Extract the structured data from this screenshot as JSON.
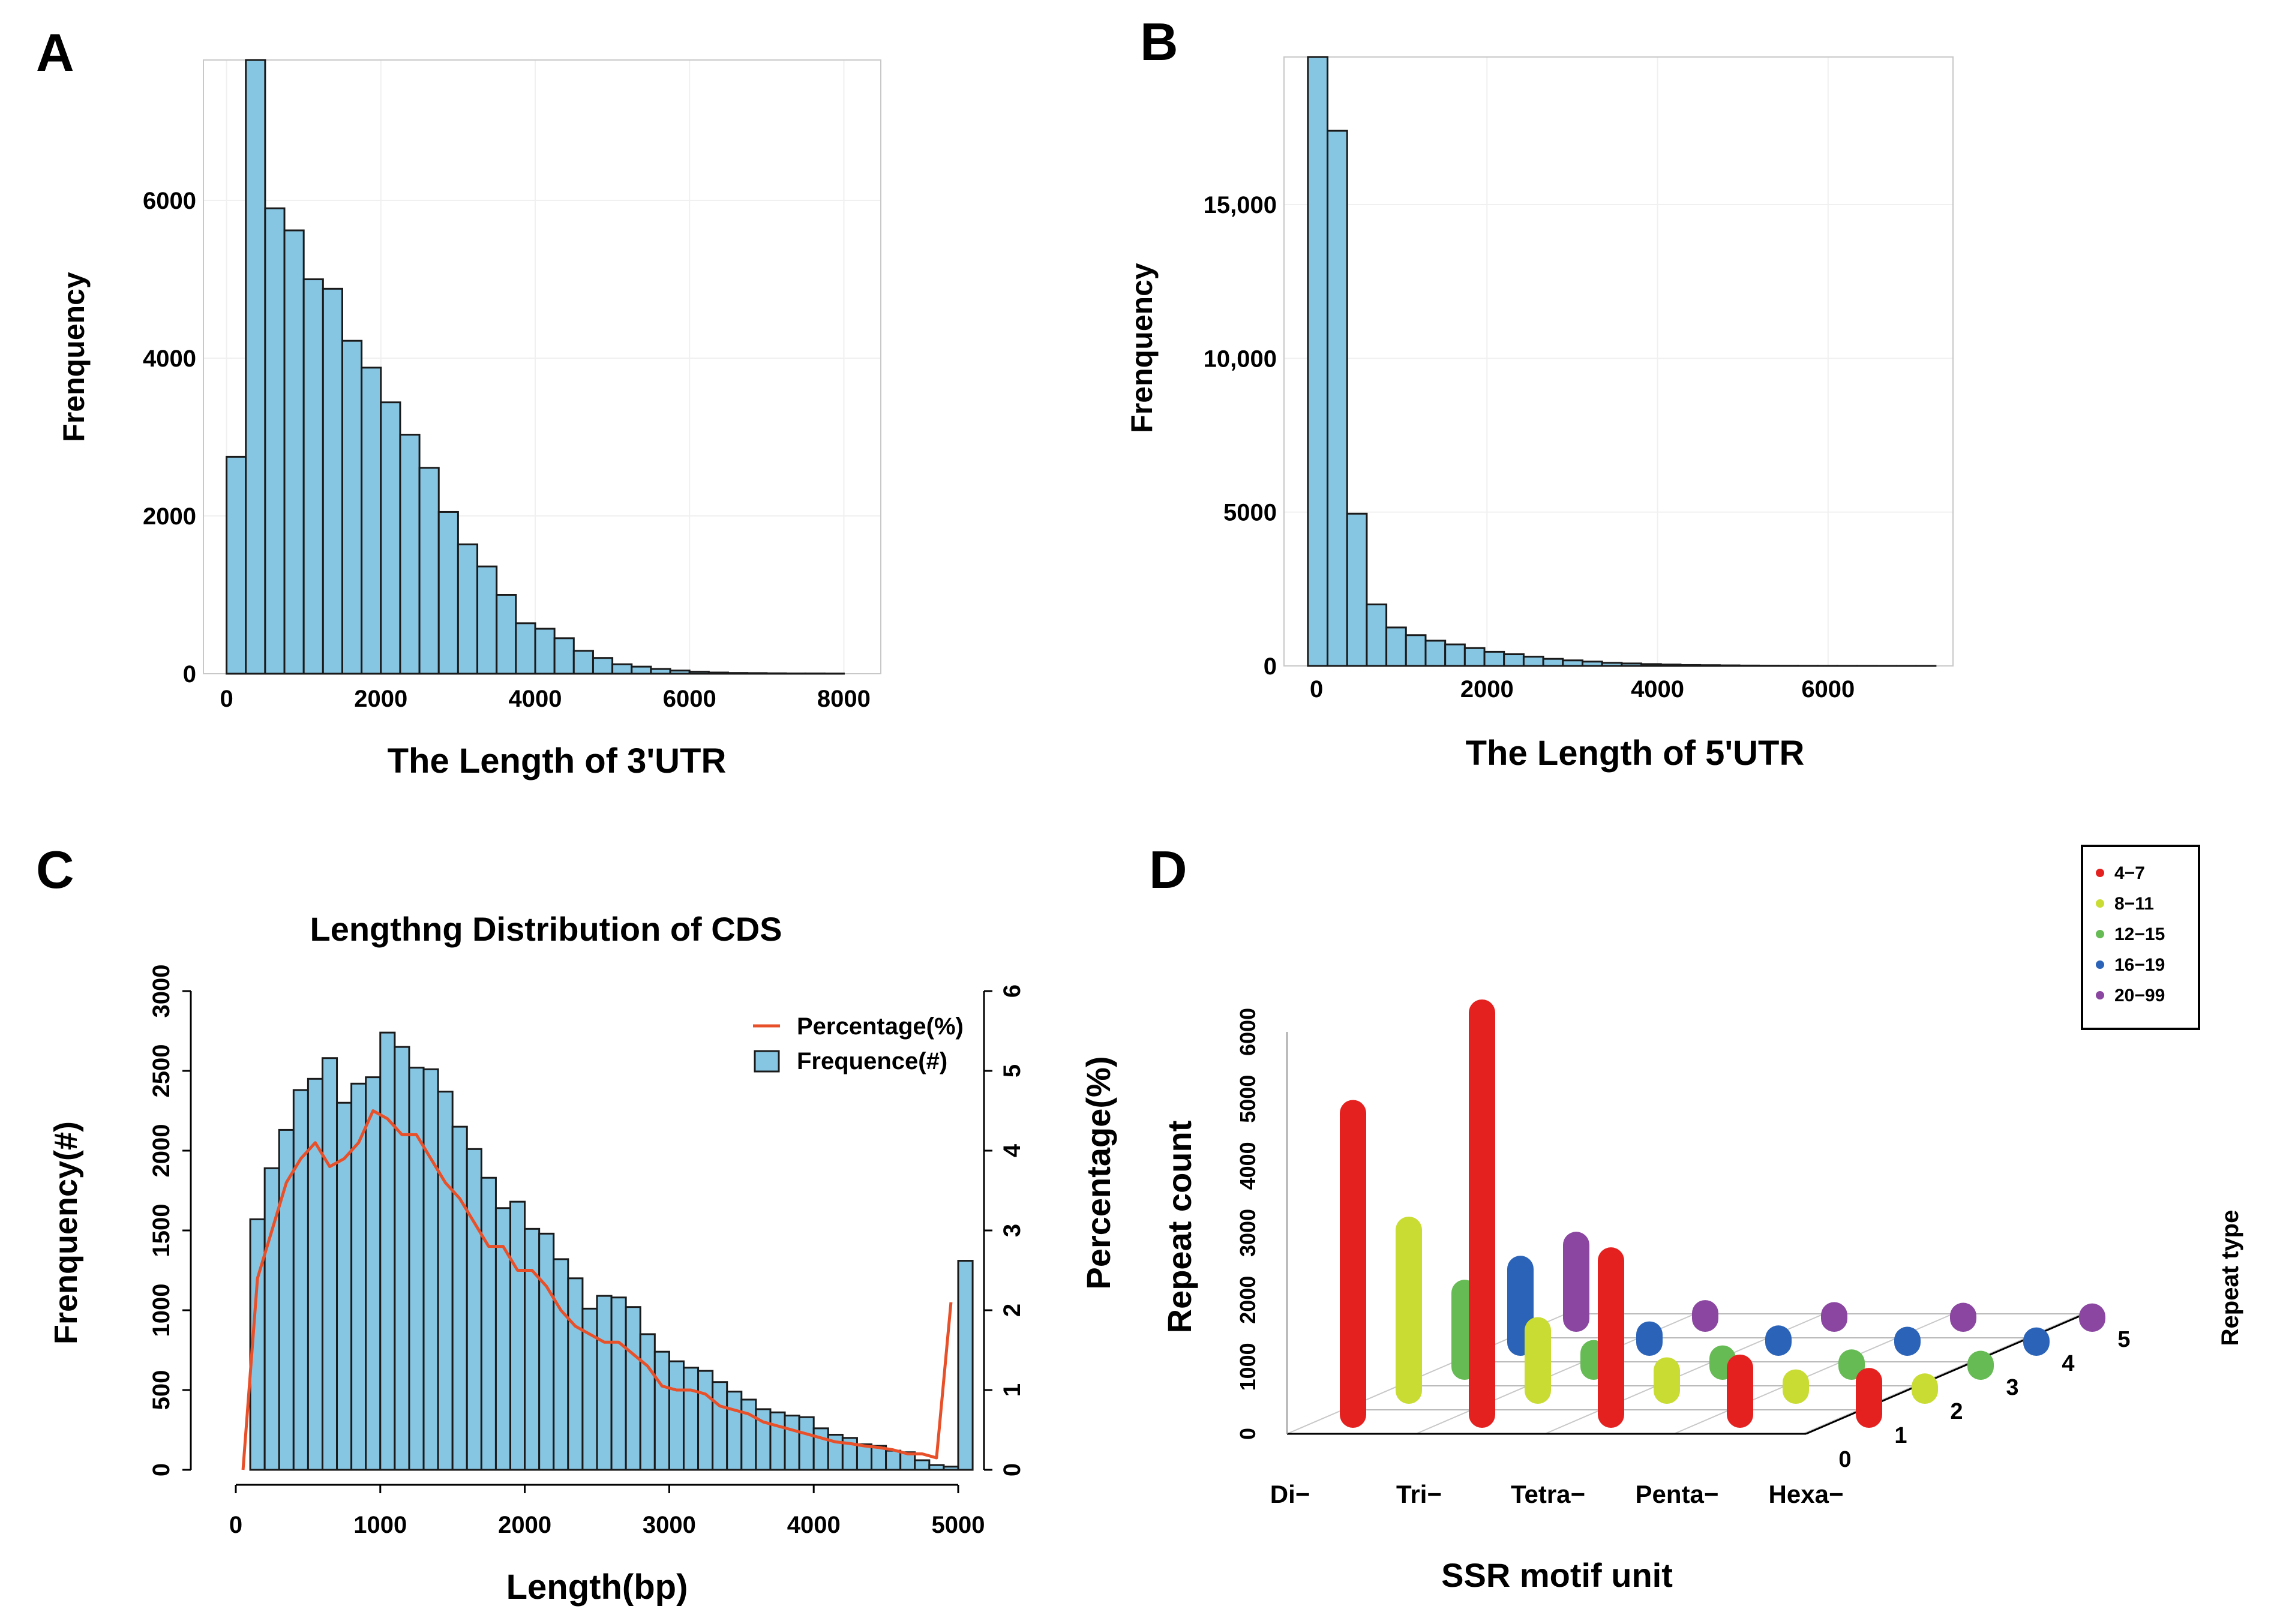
{
  "panels": {
    "A": {
      "letter": "A",
      "chart_data": {
        "type": "bar",
        "title": "",
        "xlabel": "The Length of 3'UTR",
        "ylabel": "Frenquency",
        "bin_start": 0,
        "bin_width": 250,
        "values": [
          2750,
          7780,
          5900,
          5620,
          5000,
          4880,
          4220,
          3880,
          3440,
          3030,
          2610,
          2050,
          1640,
          1360,
          1000,
          640,
          570,
          450,
          290,
          200,
          120,
          90,
          60,
          40,
          25,
          15,
          10,
          8,
          5,
          3,
          3,
          2
        ],
        "xlim": [
          -300,
          8300
        ],
        "ylim": [
          0,
          7780
        ],
        "xticks": [
          0,
          2000,
          4000,
          6000,
          8000
        ],
        "xtick_labels": [
          "0",
          "2000",
          "4000",
          "6000",
          "8000"
        ],
        "yticks": [
          0,
          2000,
          4000,
          6000
        ],
        "ytick_labels": [
          "0",
          "2000",
          "4000",
          "6000"
        ]
      }
    },
    "B": {
      "letter": "B",
      "chart_data": {
        "type": "bar",
        "title": "",
        "xlabel": "The Length of 5'UTR",
        "ylabel": "Frenquency",
        "bin_start": -100,
        "bin_width": 230,
        "values": [
          19800,
          17400,
          4950,
          2000,
          1250,
          1000,
          820,
          700,
          580,
          460,
          380,
          300,
          230,
          180,
          140,
          100,
          80,
          60,
          45,
          30,
          25,
          18,
          12,
          8,
          6,
          4,
          3,
          2,
          2,
          1,
          1,
          1
        ],
        "xlim": [
          -500,
          7500
        ],
        "ylim": [
          0,
          19800
        ],
        "xticks": [
          0,
          2000,
          4000,
          6000
        ],
        "xtick_labels": [
          "0",
          "2000",
          "4000",
          "6000"
        ],
        "yticks": [
          0,
          5000,
          10000,
          15000
        ],
        "ytick_labels": [
          "0",
          "5000",
          "10,000",
          "15,000"
        ]
      }
    },
    "C": {
      "letter": "C",
      "chart_data": {
        "type": "bar",
        "title": "Lengthng Distribution of CDS",
        "xlabel": "Length(bp)",
        "ylabel": "Frenquency(#)",
        "y2label": "Percentage(%)",
        "bin_start": 100,
        "bin_width": 100,
        "values": [
          1570,
          1890,
          2130,
          2380,
          2450,
          2580,
          2300,
          2420,
          2460,
          2740,
          2650,
          2520,
          2510,
          2370,
          2150,
          2010,
          1830,
          1640,
          1680,
          1510,
          1480,
          1320,
          1200,
          1010,
          1090,
          1080,
          1020,
          850,
          740,
          680,
          640,
          620,
          550,
          490,
          440,
          380,
          360,
          340,
          330,
          260,
          220,
          200,
          160,
          150,
          120,
          110,
          60,
          30,
          20,
          1310
        ],
        "series": [
          {
            "name": "Percentage(%)",
            "x": [
              50,
              150,
              250,
              350,
              450,
              550,
              650,
              750,
              850,
              950,
              1050,
              1150,
              1250,
              1350,
              1450,
              1550,
              1650,
              1750,
              1850,
              1950,
              2050,
              2150,
              2250,
              2350,
              2450,
              2550,
              2650,
              2750,
              2850,
              2950,
              3050,
              3150,
              3250,
              3350,
              3450,
              3550,
              3650,
              3750,
              3850,
              3950,
              4050,
              4150,
              4250,
              4350,
              4450,
              4550,
              4650,
              4750,
              4850,
              4950
            ],
            "values": [
              0,
              2.4,
              3.0,
              3.6,
              3.9,
              4.1,
              3.8,
              3.9,
              4.1,
              4.5,
              4.4,
              4.2,
              4.2,
              3.9,
              3.6,
              3.4,
              3.1,
              2.8,
              2.8,
              2.5,
              2.5,
              2.3,
              2.0,
              1.8,
              1.7,
              1.6,
              1.6,
              1.45,
              1.3,
              1.05,
              1.0,
              1.0,
              0.95,
              0.8,
              0.75,
              0.7,
              0.6,
              0.55,
              0.5,
              0.45,
              0.4,
              0.35,
              0.33,
              0.3,
              0.28,
              0.25,
              0.2,
              0.2,
              0.15,
              2.1
            ]
          },
          {
            "name": "Frequence(#)"
          }
        ],
        "xlim": [
          0,
          5000
        ],
        "ylim": [
          0,
          3000
        ],
        "y2lim": [
          0,
          6
        ],
        "xticks": [
          0,
          1000,
          2000,
          3000,
          4000,
          5000
        ],
        "xtick_labels": [
          "0",
          "1000",
          "2000",
          "3000",
          "4000",
          "5000"
        ],
        "yticks": [
          0,
          500,
          1000,
          1500,
          2000,
          2500,
          3000
        ],
        "ytick_labels": [
          "0",
          "500",
          "1000",
          "1500",
          "2000",
          "2500",
          "3000"
        ],
        "y2ticks": [
          0,
          1,
          2,
          3,
          4,
          5,
          6
        ],
        "y2tick_labels": [
          "0",
          "1",
          "2",
          "3",
          "4",
          "5",
          "6"
        ],
        "legend": [
          "Percentage(%)",
          "Frequence(#)"
        ],
        "legend_position": "top-right",
        "line_color": "#e8502a"
      }
    },
    "D": {
      "letter": "D",
      "chart_data": {
        "type": "bar3d",
        "title": "",
        "xlabel": "SSR motif unit",
        "ylabel": "Repeat count",
        "zlabel": "Repeat type",
        "categories": [
          "Di−",
          "Tri−",
          "Tetra−",
          "Penta−",
          "Hexa−"
        ],
        "depth_ticks": [
          "0",
          "1",
          "2",
          "3",
          "4",
          "5"
        ],
        "yticks": [
          0,
          1000,
          2000,
          3000,
          4000,
          5000,
          6000
        ],
        "ytick_labels": [
          "0",
          "1000",
          "2000",
          "3000",
          "4000",
          "5000",
          "6000"
        ],
        "ylim": [
          0,
          6000
        ],
        "legend_position": "top-right",
        "series": [
          {
            "name": "4−7",
            "color": "#e5211f",
            "values": [
              4500,
              6000,
              2300,
              700,
              500
            ]
          },
          {
            "name": "8−11",
            "color": "#c8dc33",
            "values": [
              2400,
              900,
              300,
              120,
              60
            ]
          },
          {
            "name": "12−15",
            "color": "#66bb55",
            "values": [
              1100,
              200,
              120,
              60,
              40
            ]
          },
          {
            "name": "16−19",
            "color": "#2b63b8",
            "values": [
              1100,
              120,
              60,
              40,
              30
            ]
          },
          {
            "name": "20−99",
            "color": "#8a46a0",
            "values": [
              1100,
              80,
              50,
              40,
              30
            ]
          }
        ]
      }
    }
  }
}
